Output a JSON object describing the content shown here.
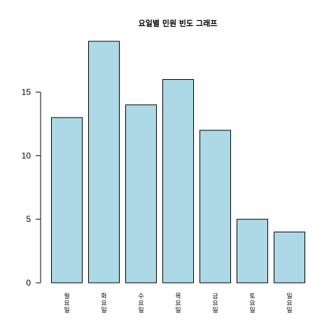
{
  "chart_data": {
    "type": "bar",
    "title": "요일별 민원 빈도 그래프",
    "categories": [
      "월요일",
      "화요일",
      "수요일",
      "목요일",
      "금요일",
      "토요일",
      "일요일"
    ],
    "values": [
      13,
      19,
      14,
      16,
      12,
      5,
      4
    ],
    "ylim": [
      0,
      19
    ],
    "y_ticks": [
      0,
      5,
      10,
      15
    ],
    "xlabel": "",
    "ylabel": "",
    "bar_color": "#add8e6",
    "border_color": "#000000",
    "grid": false,
    "x_label_orientation": "vertical"
  }
}
